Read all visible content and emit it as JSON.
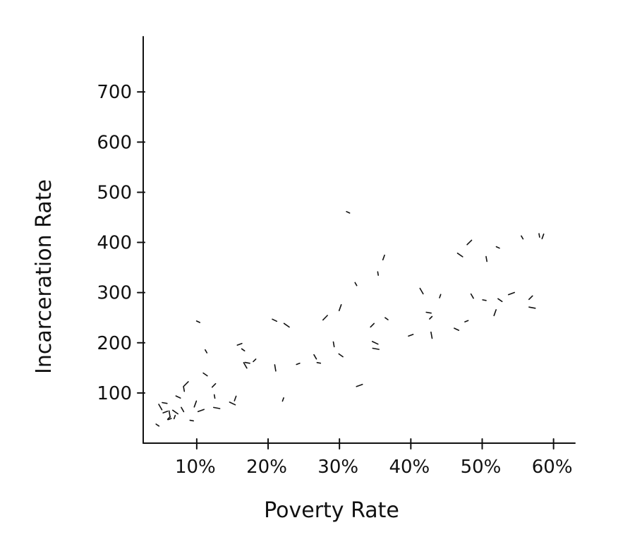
{
  "chart_data": {
    "type": "scatter",
    "xlabel": "Poverty Rate",
    "ylabel": "Incarceration Rate",
    "xlim": [
      2.5,
      63
    ],
    "ylim": [
      0,
      810
    ],
    "x_ticks": [
      {
        "value": 10,
        "label": "10%"
      },
      {
        "value": 20,
        "label": "20%"
      },
      {
        "value": 30,
        "label": "30%"
      },
      {
        "value": 40,
        "label": "40%"
      },
      {
        "value": 50,
        "label": "50%"
      },
      {
        "value": 60,
        "label": "60%"
      }
    ],
    "y_ticks": [
      {
        "value": 100,
        "label": "100"
      },
      {
        "value": 200,
        "label": "200"
      },
      {
        "value": 300,
        "label": "300"
      },
      {
        "value": 400,
        "label": "400"
      },
      {
        "value": 500,
        "label": "500"
      },
      {
        "value": 600,
        "label": "600"
      },
      {
        "value": 700,
        "label": "700"
      }
    ],
    "grid": false,
    "series": [
      {
        "x": [
          4.5,
          5.6,
          4.9,
          6.1,
          5.5,
          6.2,
          6.9,
          7.4,
          7.0,
          6.2,
          8.0,
          8.5,
          9.3,
          8.2,
          9.8,
          10.2,
          11.2,
          10.6,
          11.3,
          12.4,
          12.8,
          12.5,
          15.4,
          15.0,
          16.5,
          16.0,
          16.8,
          18.1,
          17.1,
          21.0,
          22.1,
          20.9,
          22.6,
          24.2,
          26.6,
          28.0,
          27.1,
          29.2,
          30.1,
          31.2,
          30.2,
          32.8,
          32.3,
          34.6,
          35.1,
          35.4,
          36.2,
          35.0,
          36.6,
          40.0,
          41.5,
          42.8,
          42.5,
          42.9,
          44.1,
          46.4,
          46.9,
          47.8,
          48.6,
          48.2,
          50.3,
          50.6,
          51.8,
          52.2,
          52.5,
          54.1,
          55.6,
          56.8,
          57.0,
          58.0,
          58.5
        ],
        "y": [
          36,
          62,
          72,
          50,
          80,
          58,
          52,
          92,
          62,
          48,
          67,
          118,
          45,
          108,
          78,
          242,
          137,
          65,
          183,
          115,
          70,
          93,
          89,
          79,
          186,
          197,
          155,
          165,
          160,
          150,
          87,
          245,
          235,
          158,
          172,
          250,
          160,
          197,
          270,
          460,
          175,
          115,
          317,
          235,
          188,
          338,
          370,
          200,
          248,
          215,
          303,
          250,
          260,
          215,
          293,
          227,
          375,
          243,
          293,
          400,
          285,
          367,
          260,
          390,
          285,
          298,
          410,
          290,
          270,
          414,
          412
        ]
      }
    ]
  }
}
